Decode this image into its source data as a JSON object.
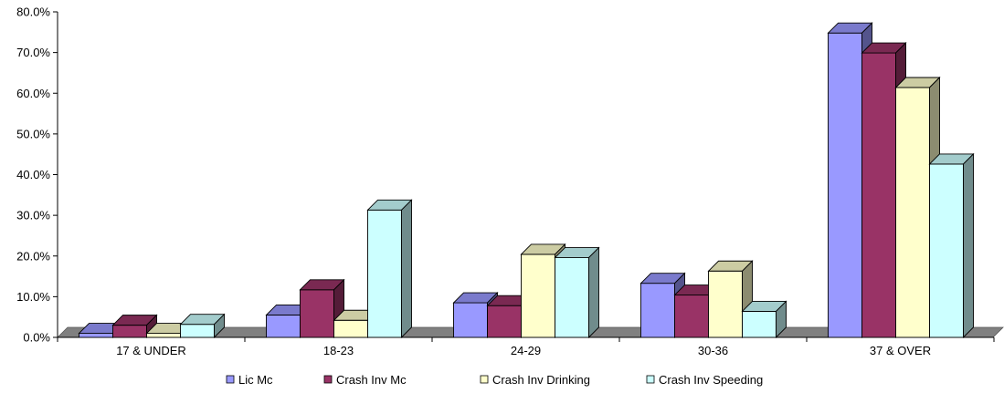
{
  "chart_data": {
    "type": "bar",
    "categories": [
      "17 & UNDER",
      "18-23",
      "24-29",
      "30-36",
      "37 & OVER"
    ],
    "series": [
      {
        "name": "Lic Mc",
        "values": [
          1.0,
          5.5,
          8.5,
          13.3,
          74.8
        ],
        "color": "#9999ff"
      },
      {
        "name": "Crash Inv Mc",
        "values": [
          3.0,
          11.7,
          7.8,
          10.4,
          69.9
        ],
        "color": "#993366"
      },
      {
        "name": "Crash Inv Drinking",
        "values": [
          1.0,
          4.2,
          20.4,
          16.3,
          61.4
        ],
        "color": "#ffffcc"
      },
      {
        "name": "Crash Inv Speeding",
        "values": [
          3.2,
          31.3,
          19.6,
          6.4,
          42.6
        ],
        "color": "#ccffff"
      }
    ],
    "y_ticks": [
      "0.0%",
      "10.0%",
      "20.0%",
      "30.0%",
      "40.0%",
      "50.0%",
      "60.0%",
      "70.0%",
      "80.0%"
    ],
    "ylim": [
      0,
      80
    ],
    "title": "",
    "xlabel": "",
    "ylabel": "",
    "grid": false,
    "legend_position": "bottom",
    "floor_color": "#808080"
  }
}
